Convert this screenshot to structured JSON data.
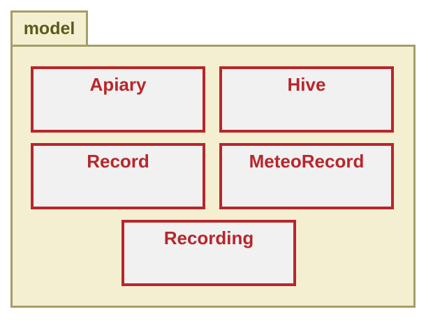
{
  "package": {
    "name": "model"
  },
  "classes": [
    {
      "name": "Apiary"
    },
    {
      "name": "Hive"
    },
    {
      "name": "Record"
    },
    {
      "name": "MeteoRecord"
    },
    {
      "name": "Recording"
    }
  ],
  "colors": {
    "package_fill": "#f5efd2",
    "package_border": "#a39f68",
    "package_text": "#5c5a1c",
    "class_fill": "#f1f1f1",
    "class_border": "#b8262b",
    "class_text": "#b8262b"
  }
}
